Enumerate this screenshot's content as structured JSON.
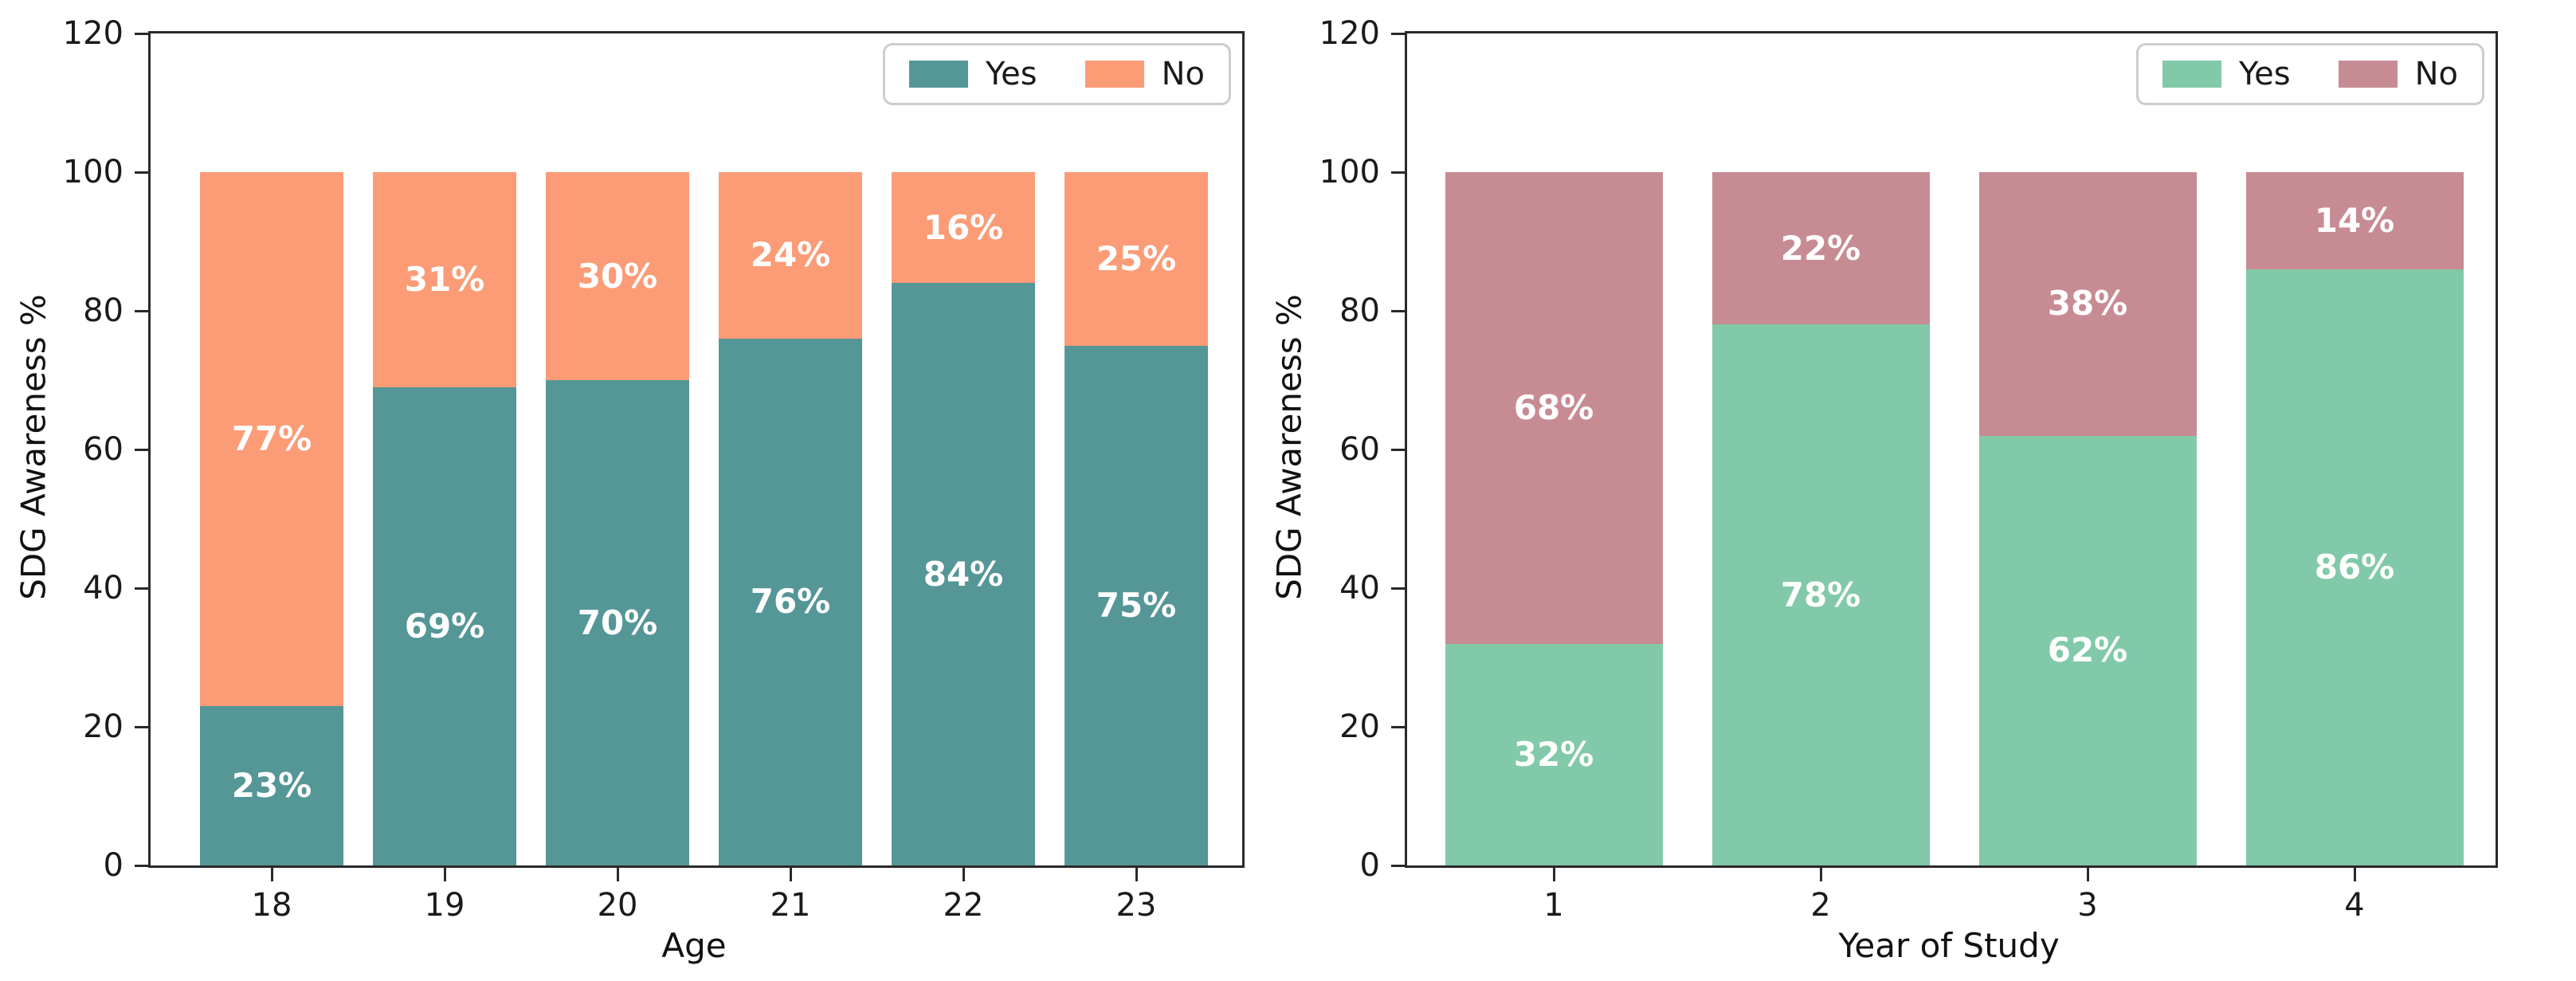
{
  "figure_background": "#ffffff",
  "chart_data": [
    {
      "type": "bar",
      "stacked": true,
      "xlabel": "Age",
      "ylabel": "SDG Awareness %",
      "ylim": [
        0,
        120
      ],
      "yticks": [
        "0",
        "20",
        "40",
        "60",
        "80",
        "100",
        "120"
      ],
      "grid": false,
      "legend_position": "upper right inside, horizontal",
      "categories": [
        "18",
        "19",
        "20",
        "21",
        "22",
        "23"
      ],
      "series": [
        {
          "name": "Yes",
          "color": "#559697",
          "values": [
            23,
            69,
            70,
            76,
            84,
            75
          ],
          "labels": [
            "23%",
            "69%",
            "70%",
            "76%",
            "84%",
            "75%"
          ]
        },
        {
          "name": "No",
          "color": "#FB9C77",
          "values": [
            77,
            31,
            30,
            24,
            16,
            25
          ],
          "labels": [
            "77%",
            "31%",
            "30%",
            "24%",
            "16%",
            "25%"
          ]
        }
      ]
    },
    {
      "type": "bar",
      "stacked": true,
      "xlabel": "Year of Study",
      "ylabel": "SDG Awareness %",
      "ylim": [
        0,
        120
      ],
      "yticks": [
        "0",
        "20",
        "40",
        "60",
        "80",
        "100",
        "120"
      ],
      "grid": false,
      "legend_position": "upper right inside, horizontal",
      "categories": [
        "1",
        "2",
        "3",
        "4"
      ],
      "series": [
        {
          "name": "Yes",
          "color": "#81C9A9",
          "values": [
            32,
            78,
            62,
            86
          ],
          "labels": [
            "32%",
            "78%",
            "62%",
            "86%"
          ]
        },
        {
          "name": "No",
          "color": "#C78B94",
          "values": [
            68,
            22,
            38,
            14
          ],
          "labels": [
            "68%",
            "22%",
            "38%",
            "14%"
          ]
        }
      ]
    }
  ]
}
